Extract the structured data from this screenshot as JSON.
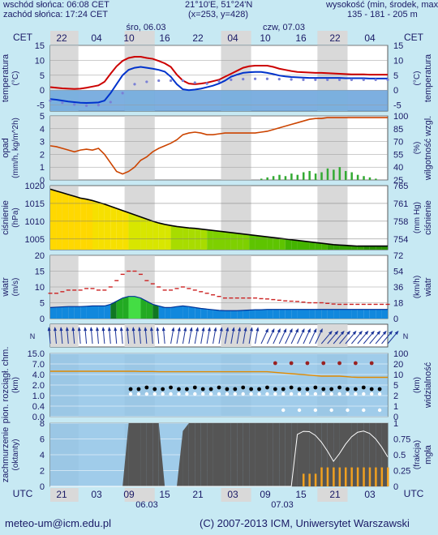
{
  "header": {
    "sunrise": "wschód słońca: 06:08 CET",
    "sunset": "zachód słońca: 17:24 CET",
    "location": "21°10'E, 51°24'N",
    "grid": "(x=253, y=428)",
    "altitude_label": "wysokość (min, środek, max)",
    "altitude_values": "135 - 181 - 205 m"
  },
  "timeline": {
    "tz_left": "CET",
    "tz_right": "CET",
    "day1": "śro, 06.03",
    "day2": "czw, 07.03",
    "top_hours": [
      "22",
      "04",
      "10",
      "16",
      "22",
      "04",
      "10",
      "16",
      "22",
      "04"
    ],
    "utc_left": "UTC",
    "utc_right": "UTC",
    "bottom_hours": [
      "21",
      "03",
      "09",
      "15",
      "21",
      "03",
      "09",
      "15",
      "21",
      "03"
    ],
    "bottom_date1": "06.03",
    "bottom_date2": "07.03"
  },
  "panels": {
    "temperature": {
      "label": "temperatura",
      "unit": "(°C)",
      "label_r": "temperatura",
      "unit_r": "(°C)"
    },
    "precip": {
      "label": "opad",
      "unit": "(mm/h, kg/m^2h)",
      "label_r": "wilgotność wzgl.",
      "unit_r": "(%)"
    },
    "pressure": {
      "label": "ciśnienie",
      "unit": "(hPa)",
      "label_r": "ciśnienie",
      "unit_r": "(mm Hg)"
    },
    "wind": {
      "label": "wiatr",
      "unit": "(m/s)",
      "label_r": "wiatr",
      "unit_r": "(km/h)"
    },
    "visibility": {
      "label": "pion. rozciągł. chm.",
      "unit": "(km)",
      "label_r": "widzialność",
      "unit_r": "(km)"
    },
    "clouds": {
      "label": "zachmurzenie",
      "unit": "(oktanty)",
      "label_r": "mgła",
      "unit_r": "(frakcja)"
    }
  },
  "footer": {
    "email": "meteo-um@icm.edu.pl",
    "copyright": "(C) 2007-2013 ICM, Uniwersytet Warszawski"
  },
  "colors": {
    "background": "#c7e9f3",
    "night_band": "#d9d9d9",
    "text": "#1a1a66",
    "temperature": "#cc0000",
    "dewpoint": "#0033cc",
    "humidity": "#cc4400",
    "precip": "#33aa33",
    "cloud": "#555555",
    "fog": "#f0a020"
  },
  "chart_data": [
    {
      "type": "line",
      "title": "",
      "ylabel": "temperatura (°C)",
      "ylim": [
        -7,
        15
      ],
      "yticks": [
        -5,
        0,
        5,
        10,
        15
      ],
      "x": [
        0,
        3,
        6,
        9,
        12,
        15,
        18,
        21,
        24,
        27,
        30,
        33,
        36,
        39,
        42,
        45,
        48,
        51,
        54,
        57,
        60,
        63,
        66,
        69,
        72,
        75,
        78,
        81,
        84,
        87,
        90,
        93,
        96,
        99,
        102,
        105,
        108,
        111,
        114,
        117,
        120,
        123,
        126,
        129,
        132,
        135,
        138,
        141,
        144,
        147,
        150,
        153,
        156,
        159,
        162,
        165,
        168
      ],
      "series": [
        {
          "values": [
            1,
            0.8,
            0.6,
            0.5,
            0.4,
            0.5,
            0.8,
            1.2,
            1.6,
            2.8,
            5.5,
            8.0,
            9.8,
            10.8,
            11.2,
            11.2,
            10.8,
            10.5,
            9.8,
            9.0,
            7.8,
            5.2,
            3.2,
            2.2,
            2.0,
            2.2,
            2.5,
            3.0,
            3.5,
            4.5,
            5.5,
            6.5,
            7.5,
            8.0,
            8.2,
            8.2,
            8.2,
            7.8,
            7.2,
            6.8,
            6.4,
            6.1,
            6.0,
            5.9,
            5.8,
            5.8,
            5.7,
            5.6,
            5.5,
            5.4,
            5.3,
            5.3,
            5.3,
            5.2,
            5.2,
            5.2,
            5.2
          ]
        },
        {
          "values": [
            -3,
            -3.2,
            -3.5,
            -3.8,
            -4,
            -4.2,
            -4.3,
            -4.2,
            -4.1,
            -3.5,
            -1.0,
            2.0,
            5.0,
            6.8,
            7.5,
            7.8,
            7.5,
            7.2,
            6.8,
            6.2,
            4.5,
            2.0,
            0.3,
            0.0,
            0.2,
            0.5,
            1.0,
            1.5,
            2.2,
            3.2,
            4.5,
            5.2,
            5.8,
            6.0,
            6.1,
            6.1,
            5.8,
            5.4,
            4.9,
            4.6,
            4.4,
            4.3,
            4.2,
            4.1,
            4.1,
            4.1,
            4.1,
            4.1,
            4.1,
            4.0,
            4.0,
            4.0,
            4.0,
            3.9,
            3.9,
            3.9,
            3.9
          ]
        },
        {
          "values": [
            -3.5,
            -3.8,
            -4.2,
            -4.5,
            -4.8,
            -5,
            -5.2,
            -5.1,
            -5,
            -4.5,
            -4,
            -3,
            -1,
            1,
            2,
            2.5,
            2.8,
            3,
            3.2,
            3.0,
            3.2,
            3.5,
            3.2,
            2.8,
            2.5,
            2.2,
            2.2,
            2.5,
            3,
            3.2,
            3.5,
            3.6,
            3.7,
            3.8,
            3.8,
            3.8,
            3.8,
            3.7,
            3.7,
            3.6,
            3.6,
            3.5,
            3.5,
            3.5,
            3.5,
            3.5,
            3.5,
            3.5,
            3.5,
            3.5,
            3.5,
            3.5,
            3.5,
            3.5,
            3.5,
            3.5,
            3.5
          ]
        }
      ]
    },
    {
      "type": "line",
      "title": "",
      "ylabel": "opad (mm/h, kg/m^2h)",
      "ylim": [
        0,
        5
      ],
      "yticks": [
        0,
        1,
        2,
        3,
        4,
        5
      ],
      "y2label": "wilgotność wzgl. (%)",
      "y2ticks": [
        25,
        40,
        55,
        70,
        85,
        100
      ],
      "series": [
        {
          "values": [
            65,
            64,
            62,
            60,
            58,
            60,
            61,
            60,
            62,
            55,
            45,
            35,
            32,
            35,
            40,
            48,
            52,
            58,
            62,
            65,
            68,
            72,
            78,
            80,
            81,
            80,
            78,
            78,
            79,
            80,
            80,
            80,
            80,
            80,
            80,
            81,
            82,
            84,
            86,
            88,
            90,
            92,
            94,
            96,
            97,
            97,
            98,
            98,
            98,
            98,
            98,
            98,
            98,
            98,
            98,
            98,
            98
          ]
        },
        {
          "values": [
            0,
            0,
            0,
            0,
            0,
            0,
            0,
            0,
            0,
            0,
            0,
            0,
            0,
            0,
            0,
            0,
            0,
            0,
            0,
            0,
            0,
            0,
            0,
            0,
            0,
            0,
            0,
            0,
            0,
            0,
            0,
            0,
            0,
            0,
            0,
            0.1,
            0.2,
            0.3,
            0.4,
            0.3,
            0.5,
            0.4,
            0.6,
            0.7,
            0.5,
            0.6,
            0.9,
            0.8,
            1.0,
            0.7,
            0.6,
            0.4,
            0.3,
            0.2,
            0.1,
            0,
            0
          ]
        }
      ]
    },
    {
      "type": "area",
      "title": "",
      "ylabel": "ciśnienie (hPa)",
      "ylim": [
        1002,
        1020
      ],
      "yticks": [
        1005,
        1010,
        1015,
        1020
      ],
      "y2label": "ciśnienie (mm Hg)",
      "y2ticks": [
        754,
        758,
        761,
        765
      ],
      "series": [
        {
          "values": [
            1019,
            1018.5,
            1018,
            1017.5,
            1017,
            1016.5,
            1016.2,
            1015.8,
            1015.3,
            1014.8,
            1014.2,
            1013.6,
            1013,
            1012.4,
            1011.8,
            1011.2,
            1010.6,
            1010,
            1009.5,
            1009.1,
            1008.8,
            1008.5,
            1008.3,
            1008.1,
            1008,
            1007.8,
            1007.6,
            1007.4,
            1007.2,
            1007,
            1006.8,
            1006.6,
            1006.4,
            1006.2,
            1006,
            1005.8,
            1005.6,
            1005.4,
            1005.2,
            1005,
            1004.8,
            1004.6,
            1004.4,
            1004.2,
            1004,
            1003.8,
            1003.6,
            1003.4,
            1003.3,
            1003.2,
            1003.1,
            1003,
            1003,
            1003,
            1003,
            1003,
            1003
          ]
        }
      ]
    },
    {
      "type": "area",
      "title": "",
      "ylabel": "wiatr (m/s)",
      "ylim": [
        0,
        20
      ],
      "yticks": [
        0,
        5,
        10,
        15,
        20
      ],
      "y2label": "wiatr (km/h)",
      "y2ticks": [
        0,
        18,
        36,
        54,
        72
      ],
      "series": [
        {
          "values": [
            3.5,
            3.6,
            3.7,
            3.8,
            3.8,
            3.8,
            3.9,
            4.0,
            4.0,
            4.0,
            4.5,
            5.5,
            6.5,
            7.0,
            7.0,
            6.5,
            5.5,
            4.5,
            4.0,
            3.5,
            3.5,
            3.8,
            4.0,
            3.8,
            3.5,
            3.2,
            3.0,
            2.8,
            2.6,
            2.5,
            2.5,
            2.5,
            2.6,
            2.7,
            2.8,
            2.8,
            2.9,
            2.9,
            2.9,
            2.9,
            2.9,
            2.9,
            2.9,
            2.9,
            2.9,
            2.9,
            2.9,
            2.9,
            2.9,
            2.9,
            2.9,
            2.9,
            2.9,
            2.9,
            2.9,
            2.9,
            2.9
          ]
        },
        {
          "values": [
            8,
            8,
            8.5,
            9,
            9,
            9,
            9.5,
            9.5,
            9,
            9,
            10,
            12,
            14,
            15,
            15,
            14,
            12,
            11,
            10,
            9,
            9,
            9.5,
            10,
            9.5,
            9,
            8.5,
            8,
            7.5,
            7,
            6.5,
            6.5,
            6.5,
            6.5,
            6.5,
            6.5,
            6.3,
            6.2,
            6.0,
            5.8,
            5.6,
            5.5,
            5.4,
            5.2,
            5.0,
            5.0,
            5.0,
            4.8,
            4.6,
            4.5,
            4.5,
            4.5,
            4.5,
            4.5,
            4.5,
            4.5,
            4.5,
            4.5
          ]
        }
      ]
    },
    {
      "type": "line",
      "title": "",
      "ylabel": "pion. rozciągł. chm. (km)",
      "ylim": [
        0,
        15
      ],
      "yticks": [
        "0.0",
        "0.4",
        "1.0",
        "2.0",
        "4.0",
        "7.0",
        "15.0"
      ],
      "y2label": "widzialność (km)",
      "y2ticks": [
        0,
        1,
        2,
        5,
        10,
        20,
        100
      ],
      "series": [
        {
          "values": [
            7,
            7,
            7,
            7,
            7,
            7,
            7,
            7,
            7,
            7,
            7,
            7,
            7,
            7,
            7,
            6.9,
            6.9,
            6.9,
            6.8,
            6.8,
            6.8,
            6.8,
            6.8,
            6.8,
            6.8,
            6.8,
            6.8,
            6.8,
            6.8,
            6.8,
            6.8,
            6.8,
            6.8,
            6.8,
            6.8,
            6.8,
            6.8,
            6.6,
            6.4,
            6.2,
            6.0,
            5.8,
            5.6,
            5.4,
            5.2,
            5.0,
            5.0,
            5.0,
            5.0,
            4.8,
            4.6,
            4.5,
            4.5,
            4.5,
            4.5,
            4.5,
            4.5
          ]
        }
      ]
    },
    {
      "type": "area",
      "title": "",
      "ylabel": "zachmurzenie (oktanty)",
      "ylim": [
        0,
        8
      ],
      "yticks": [
        0,
        2,
        4,
        6,
        8
      ],
      "y2label": "mgła (frakcja)",
      "y2ticks": [
        0,
        0.25,
        0.5,
        0.75,
        1
      ],
      "series": [
        {
          "values": [
            0,
            0,
            0,
            0,
            0,
            0,
            0,
            0,
            0,
            0,
            0,
            0,
            0,
            8,
            8,
            8,
            8,
            8,
            8,
            0,
            0,
            0,
            7,
            8,
            8,
            8,
            8,
            8,
            8,
            8,
            8,
            8,
            8,
            8,
            8,
            8,
            8,
            8,
            8,
            8,
            8,
            8,
            8,
            8,
            8,
            8,
            8,
            8,
            8,
            8,
            8,
            8,
            8,
            8,
            8,
            8,
            8
          ]
        },
        {
          "values": [
            0,
            0,
            0,
            0,
            0,
            0,
            0,
            0,
            0,
            0,
            0,
            0,
            0,
            0,
            0,
            0,
            0,
            0,
            0,
            0,
            0,
            0,
            0,
            0,
            0,
            0,
            0,
            0,
            0,
            0,
            0,
            0,
            0,
            0,
            0,
            0,
            0,
            0,
            0,
            0,
            0,
            0,
            0.2,
            0.2,
            0.2,
            0.3,
            0.3,
            0.3,
            0.3,
            0.3,
            0.3,
            0.3,
            0.3,
            0.3,
            0.3,
            0.3,
            0.3
          ]
        }
      ]
    }
  ]
}
